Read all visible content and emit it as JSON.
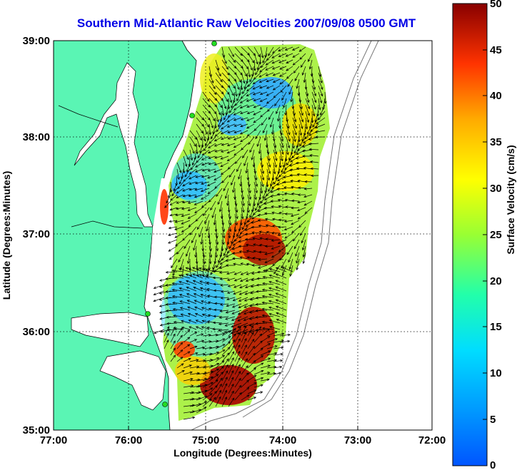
{
  "title": "Southern Mid-Atlantic Raw Velocities 2007/09/08 0500 GMT",
  "axes": {
    "xlabel": "Longitude (Degrees:Minutes)",
    "ylabel": "Latitude (Degrees:Minutes)",
    "x_ticks": [
      "77:00",
      "76:00",
      "75:00",
      "74:00",
      "73:00",
      "72:00"
    ],
    "y_ticks": [
      "39:00",
      "38:00",
      "37:00",
      "36:00",
      "35:00"
    ]
  },
  "colorbar": {
    "label": "Surface Velocity (cm/s)",
    "ticks": [
      "50",
      "45",
      "40",
      "35",
      "30",
      "25",
      "20",
      "15",
      "10",
      "5",
      "0"
    ],
    "range": [
      0,
      50
    ],
    "colormap": "jet"
  },
  "colors": {
    "title": "#0000e6",
    "land": "#5af5b4",
    "water": "#ffffff",
    "vector": "#000000",
    "station_marker": "#22dd22"
  },
  "map": {
    "lon_range": [
      -77,
      -72
    ],
    "lat_range": [
      35,
      39
    ],
    "grid": "dotted",
    "stations": [
      "station-1",
      "station-2",
      "station-3",
      "station-4"
    ]
  }
}
